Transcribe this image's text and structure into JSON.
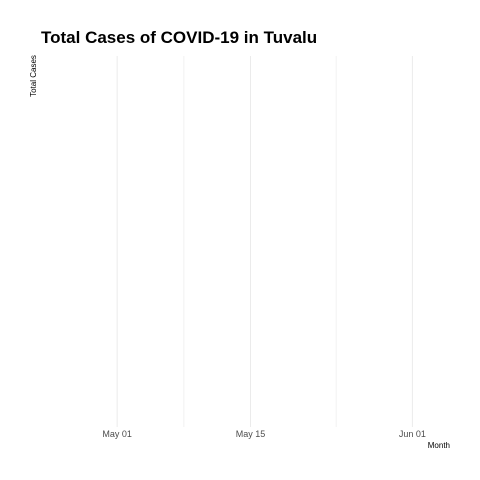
{
  "chart_data": {
    "type": "line",
    "title": "Total Cases of COVID-19 in Tuvalu",
    "xlabel": "Month",
    "ylabel": "Total Cases",
    "x_axis_type": "date",
    "xlim": [
      "2020-04-23",
      "2020-06-06"
    ],
    "x_major_ticks": [
      {
        "date": "2020-05-01",
        "label": "May 01"
      },
      {
        "date": "2020-05-15",
        "label": "May 15"
      },
      {
        "date": "2020-06-01",
        "label": "Jun 01"
      }
    ],
    "x_minor_ticks": [
      "2020-05-08",
      "2020-05-24"
    ],
    "y_ticks": [],
    "series": [
      {
        "x": [],
        "y": []
      }
    ],
    "grid": true,
    "legend": "none",
    "colors": {
      "background": "#ffffff",
      "grid_major": "#ebebeb",
      "grid_minor": "#f2f2f2",
      "tick_text": "#4d4d4d",
      "title_text": "#000000"
    }
  }
}
